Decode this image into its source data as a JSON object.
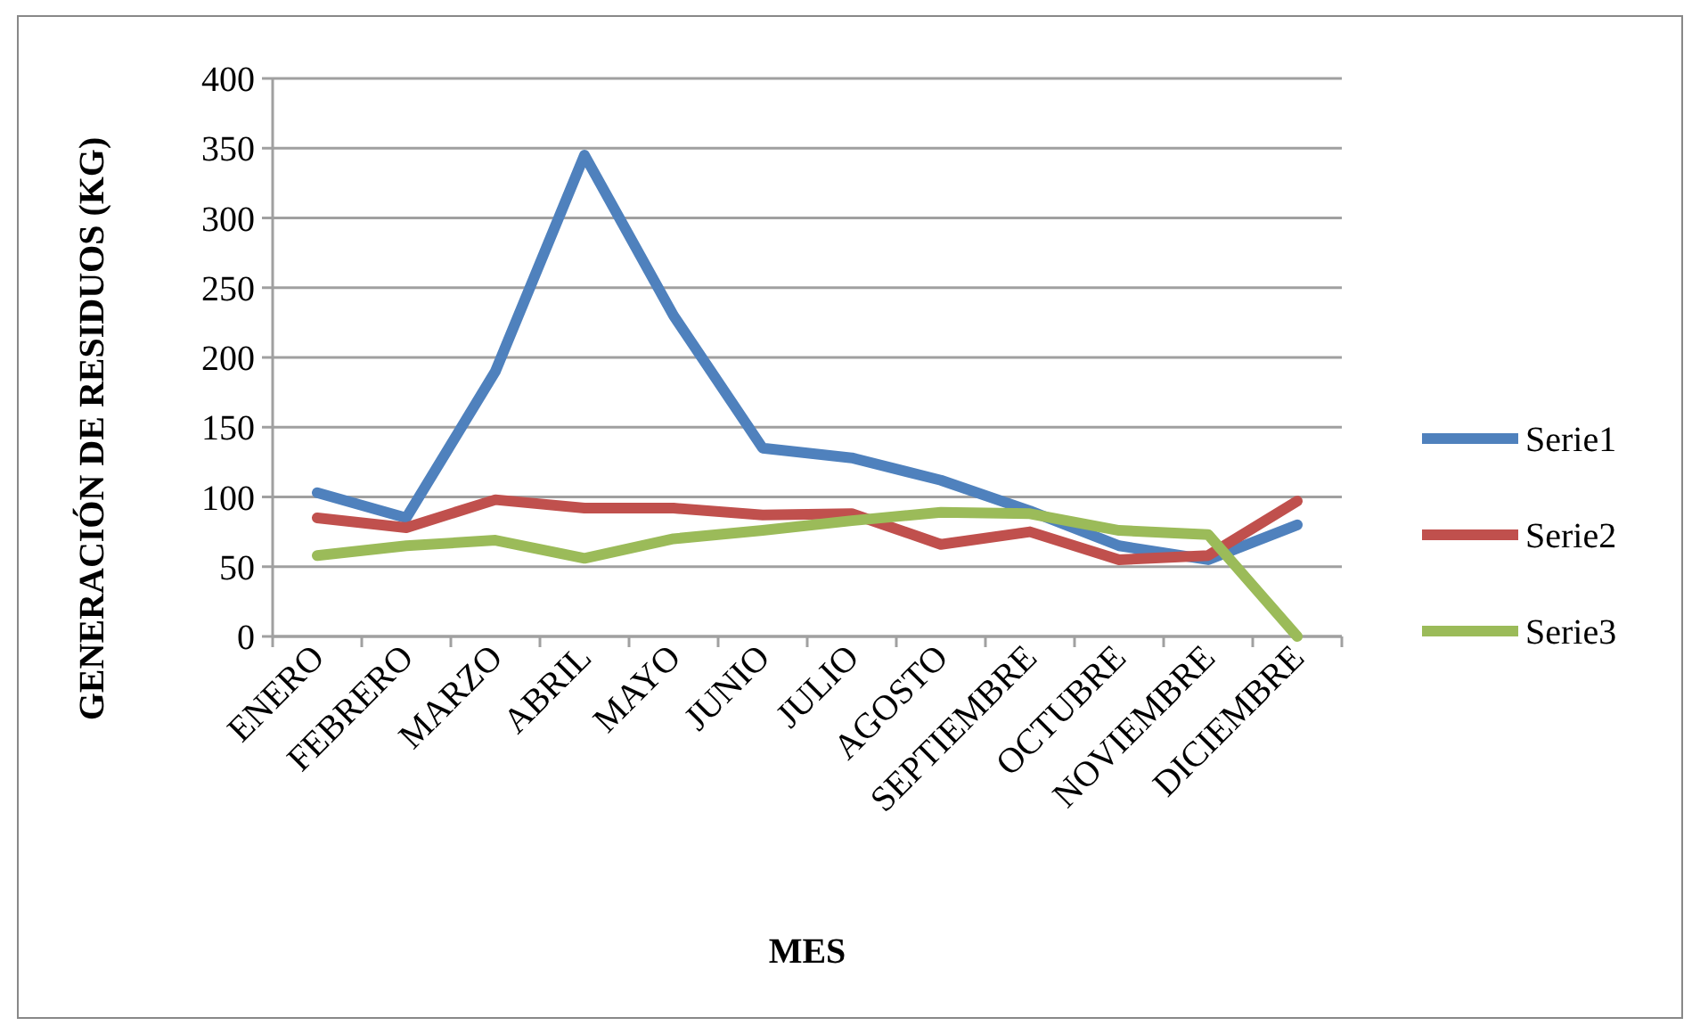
{
  "chart_data": {
    "type": "line",
    "xlabel": "MES",
    "ylabel": "GENERACIÓN DE RESIDUOS (KG)",
    "categories": [
      "ENERO",
      "FEBRERO",
      "MARZO",
      "ABRIL",
      "MAYO",
      "JUNIO",
      "JULIO",
      "AGOSTO",
      "SEPTIEMBRE",
      "OCTUBRE",
      "NOVIEMBRE",
      "DICIEMBRE"
    ],
    "series": [
      {
        "name": "Serie1",
        "color": "#4f81bd",
        "values": [
          103,
          85,
          190,
          345,
          230,
          135,
          128,
          112,
          90,
          65,
          55,
          80
        ]
      },
      {
        "name": "Serie2",
        "color": "#c0504d",
        "values": [
          85,
          78,
          98,
          92,
          92,
          87,
          88,
          66,
          75,
          55,
          58,
          97
        ]
      },
      {
        "name": "Serie3",
        "color": "#9bbb59",
        "values": [
          58,
          65,
          69,
          56,
          70,
          76,
          83,
          89,
          88,
          76,
          73,
          0
        ]
      }
    ],
    "ylim": [
      0,
      400
    ],
    "yticks": [
      0,
      50,
      100,
      150,
      200,
      250,
      300,
      350,
      400
    ],
    "grid": "y",
    "legend": "right",
    "marker": "none",
    "line_style": "solid"
  }
}
